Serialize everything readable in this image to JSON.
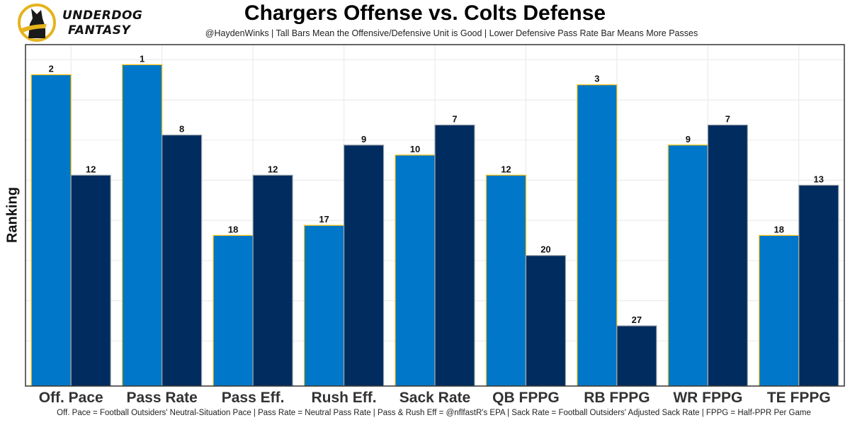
{
  "header": {
    "logo_line1": "UNDERDOG",
    "logo_line2": "FANTASY",
    "title": "Chargers Offense vs. Colts Defense",
    "subtitle": "@HaydenWinks | Tall Bars Mean the Offensive/Defensive Unit is Good | Lower Defensive Pass Rate Bar Means More Passes"
  },
  "footer": {
    "caption": "Off. Pace = Football Outsiders' Neutral-Situation Pace | Pass Rate = Neutral Pass Rate | Pass & Rush Eff = @nflfastR's EPA | Sack Rate = Football Outsiders' Adjusted Sack Rate | FPPG = Half-PPR Per Game"
  },
  "colors": {
    "offense_fill": "#0077C8",
    "offense_border": "#FFC20E",
    "defense_fill": "#002C5F",
    "defense_border": "#A2AAAD",
    "grid": "#EBEBEB",
    "logo_ring": "#E6B31E"
  },
  "chart_data": {
    "type": "bar",
    "title": "Chargers Offense vs. Colts Defense",
    "subtitle": "@HaydenWinks | Tall Bars Mean the Offensive/Defensive Unit is Good | Lower Defensive Pass Rate Bar Means More Passes",
    "xlabel": "",
    "ylabel": "Ranking",
    "y_encoding": "bar height = 33 - rank (rank 1 is tallest)",
    "ylim": [
      0,
      34
    ],
    "grid": true,
    "legend": "none",
    "categories": [
      "Off. Pace",
      "Pass Rate",
      "Pass Eff.",
      "Rush Eff.",
      "Sack Rate",
      "QB FPPG",
      "RB FPPG",
      "WR FPPG",
      "TE FPPG"
    ],
    "series": [
      {
        "name": "Chargers Offense",
        "values": [
          2,
          1,
          18,
          17,
          10,
          12,
          3,
          9,
          18
        ]
      },
      {
        "name": "Colts Defense",
        "values": [
          12,
          8,
          12,
          9,
          7,
          20,
          27,
          7,
          13
        ]
      }
    ]
  }
}
